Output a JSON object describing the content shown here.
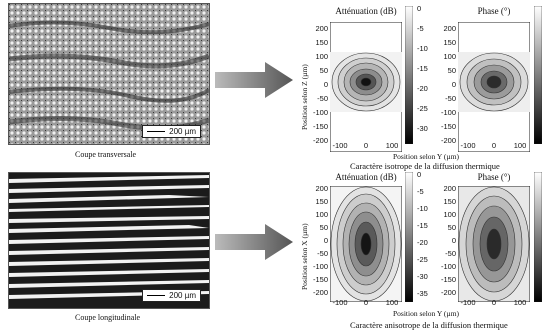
{
  "top": {
    "micro_caption": "Coupe transversale",
    "scale_label": "200 µm",
    "left_title": "Atténuation (dB)",
    "right_title": "Phase (°)",
    "xlabel": "Position selon Y (µm)",
    "ylabel": "Position selon Z (µm)",
    "subtitle": "Caractère isotrope de la diffusion thermique",
    "y_ticks": [
      "200",
      "150",
      "100",
      "50",
      "0",
      "-50",
      "-100",
      "-150",
      "-200"
    ],
    "x_ticks": [
      "-100",
      "0",
      "100"
    ],
    "colorbar_ticks": [
      "0",
      "-5",
      "-10",
      "-15",
      "-20",
      "-25",
      "-30"
    ]
  },
  "bottom": {
    "micro_caption": "Coupe longitudinale",
    "scale_label": "200 µm",
    "left_title": "Atténuation (dB)",
    "right_title": "Phase (°)",
    "xlabel": "Position selon Y (µm)",
    "ylabel": "Position selon X (µm)",
    "subtitle": "Caractère anisotrope de la diffusion thermique",
    "y_ticks": [
      "200",
      "150",
      "100",
      "50",
      "0",
      "-50",
      "-100",
      "-150",
      "-200"
    ],
    "x_ticks": [
      "-100",
      "0",
      "100"
    ],
    "colorbar_ticks": [
      "0",
      "-5",
      "-10",
      "-15",
      "-20",
      "-25",
      "-30",
      "-35"
    ]
  }
}
